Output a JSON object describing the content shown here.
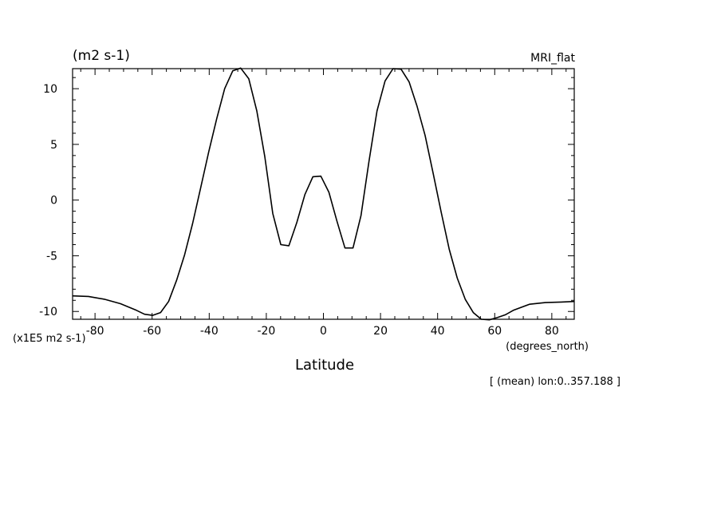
{
  "chart_data": {
    "type": "line",
    "title_left": "(m2 s-1)",
    "title_right": "MRI_flat",
    "y_scale_label": "(x1E5 m2 s-1)",
    "x_units_label": "(degrees_north)",
    "xlabel": "Latitude",
    "footnote": "[ (mean) lon:0..357.188 ]",
    "xlim": [
      -87.86,
      87.86
    ],
    "ylim": [
      -10.7,
      11.8
    ],
    "x_ticks": [
      -80,
      -60,
      -40,
      -20,
      0,
      20,
      40,
      60,
      80
    ],
    "x_tick_labels": [
      "-80",
      "-60",
      "-40",
      "-20",
      "0",
      "20",
      "40",
      "60",
      "80"
    ],
    "y_ticks": [
      -10,
      -5,
      0,
      5,
      10
    ],
    "y_tick_labels": [
      "-10",
      "-5",
      "0",
      "5",
      "10"
    ],
    "series": [
      {
        "x": [
          -87.86,
          -82.31,
          -76.7,
          -71.08,
          -65.47,
          -62.66,
          -59.85,
          -57.04,
          -54.23,
          -51.43,
          -48.62,
          -45.81,
          -43.0,
          -40.19,
          -37.38,
          -34.58,
          -31.77,
          -28.96,
          -26.15,
          -23.34,
          -20.53,
          -17.73,
          -14.92,
          -12.11,
          -9.3,
          -6.49,
          -3.68,
          -0.88,
          1.93,
          4.74,
          7.55,
          10.36,
          13.17,
          15.98,
          18.78,
          21.59,
          24.4,
          27.21,
          30.02,
          32.83,
          35.63,
          38.44,
          41.25,
          44.06,
          46.87,
          49.68,
          52.48,
          55.29,
          58.1,
          60.91,
          63.72,
          66.53,
          72.15,
          77.76,
          83.38,
          87.86
        ],
        "y": [
          -8.6,
          -8.65,
          -8.9,
          -9.3,
          -9.9,
          -10.25,
          -10.35,
          -10.1,
          -9.1,
          -7.2,
          -4.9,
          -2.1,
          1.1,
          4.3,
          7.3,
          10.0,
          11.6,
          11.85,
          10.9,
          8.0,
          3.9,
          -1.2,
          -4.0,
          -4.1,
          -2.0,
          0.5,
          2.1,
          2.15,
          0.7,
          -1.9,
          -4.3,
          -4.3,
          -1.4,
          3.5,
          8.0,
          10.7,
          11.8,
          11.75,
          10.6,
          8.4,
          5.8,
          2.4,
          -1.1,
          -4.4,
          -7.0,
          -8.9,
          -10.1,
          -10.7,
          -10.75,
          -10.55,
          -10.3,
          -9.9,
          -9.35,
          -9.2,
          -9.15,
          -9.1
        ]
      }
    ]
  }
}
